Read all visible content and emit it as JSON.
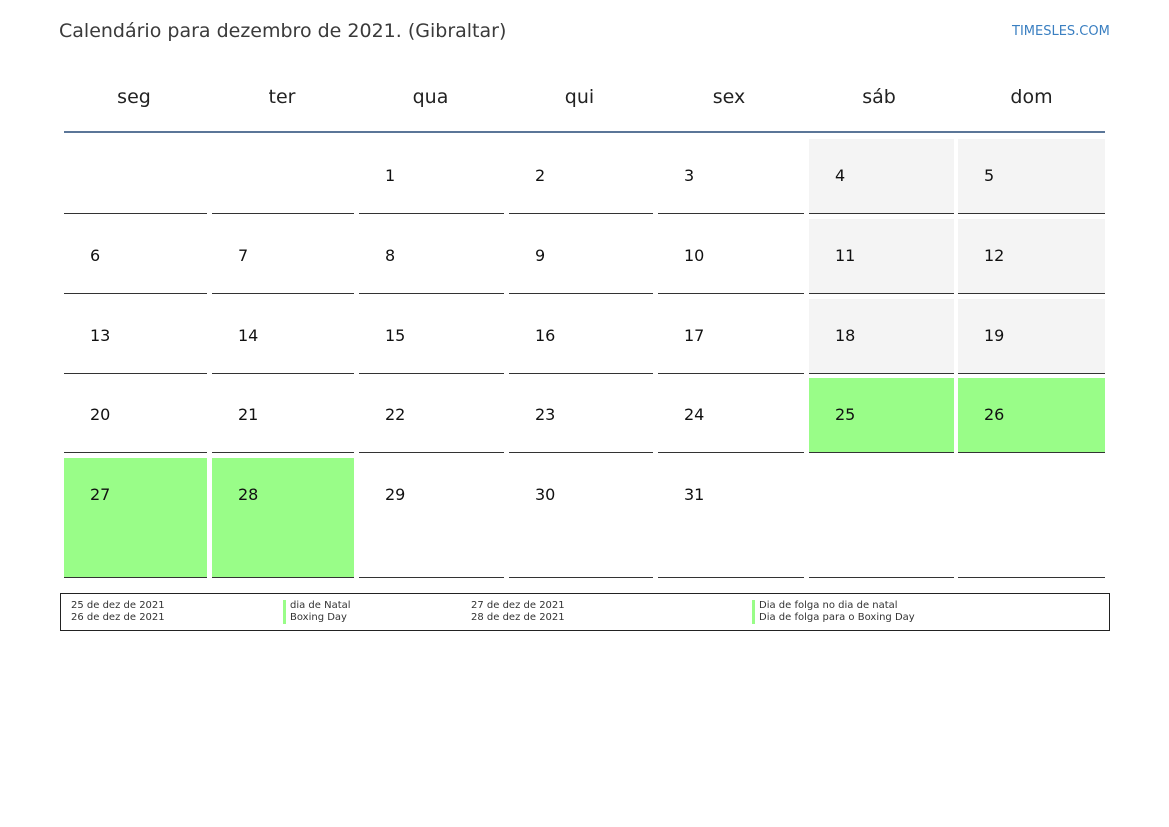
{
  "header": {
    "title": "Calendário para dezembro de 2021. (Gibraltar)",
    "brand": "TIMESLES.COM"
  },
  "colors": {
    "weekend": "#f4f4f4",
    "holiday": "#99fd88",
    "header_rule": "#5b7698",
    "brand": "#3a7fc1"
  },
  "weekdays": [
    "seg",
    "ter",
    "qua",
    "qui",
    "sex",
    "sáb",
    "dom"
  ],
  "weeks": [
    [
      "",
      "",
      "1",
      "2",
      "3",
      "4",
      "5"
    ],
    [
      "6",
      "7",
      "8",
      "9",
      "10",
      "11",
      "12"
    ],
    [
      "13",
      "14",
      "15",
      "16",
      "17",
      "18",
      "19"
    ],
    [
      "20",
      "21",
      "22",
      "23",
      "24",
      "25",
      "26"
    ],
    [
      "27",
      "28",
      "29",
      "30",
      "31",
      "",
      ""
    ]
  ],
  "legend": {
    "left": {
      "dates": [
        "25 de dez de 2021",
        "26 de dez de 2021"
      ],
      "names": [
        "dia de Natal",
        "Boxing Day"
      ]
    },
    "right": {
      "dates": [
        "27 de dez de 2021",
        "28 de dez de 2021"
      ],
      "names": [
        "Dia de folga no dia de natal",
        "Dia de folga para o Boxing Day"
      ]
    }
  }
}
